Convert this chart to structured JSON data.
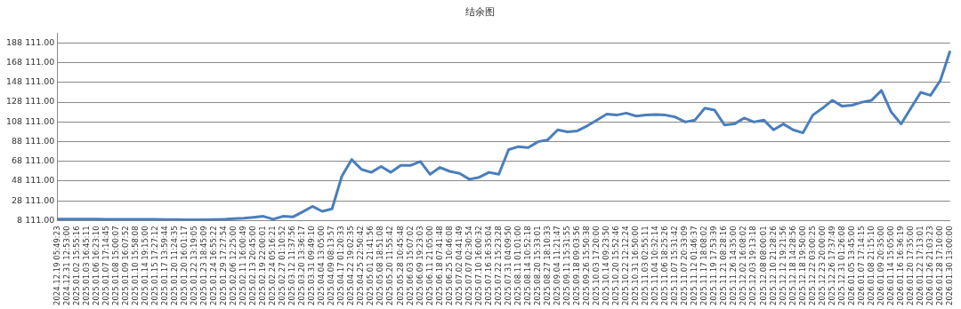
{
  "chart_data": {
    "type": "line",
    "title": "结余图",
    "categories": [
      "2024.12.19 05:49:23",
      "2024.12.31 12:53:00",
      "2025.01.02 15:55:16",
      "2025.01.03 16:45:11",
      "2025.01.06 16:23:10",
      "2025.01.07 17:14:45",
      "2025.01.08 15:00:07",
      "2025.01.09 16:07:52",
      "2025.01.10 15:58:08",
      "2025.01.14 19:15:00",
      "2025.01.15 17:27:12",
      "2025.01.17 13:59:44",
      "2025.01.20 11:24:35",
      "2025.01.20 16:01:17",
      "2025.01.22 13:19:05",
      "2025.01.23 18:45:09",
      "2025.01.24 16:55:22",
      "2025.01.29 17:27:54",
      "2025.02.06 12:25:00",
      "2025.02.11 16:00:49",
      "2025.02.13 20:45:00",
      "2025.02.19 22:00:01",
      "2025.02.24 05:16:21",
      "2025.02.27 01:10:52",
      "2025.03.12 11:37:56",
      "2025.03.20 13:36:17",
      "2025.03.31 09:49:10",
      "2025.04.04 13:05:00",
      "2025.04.09 08:13:57",
      "2025.04.17 01:20:33",
      "2025.04.22 19:02:35",
      "2025.04.25 22:50:42",
      "2025.05.01 21:41:56",
      "2025.05.08 18:51:08",
      "2025.05.20 11:55:42",
      "2025.05.28 10:45:48",
      "2025.06.03 15:07:02",
      "2025.06.09 19:23:03",
      "2025.06.11 21:05:00",
      "2025.06.18 07:41:48",
      "2025.06.25 10:46:08",
      "2025.07.02 04:41:49",
      "2025.07.07 02:30:54",
      "2025.07.10 16:00:32",
      "2025.07.16 16:35:04",
      "2025.07.22 15:23:28",
      "2025.07.31 04:09:50",
      "2025.08.11 01:01:00",
      "2025.08.14 10:52:18",
      "2025.08.20 15:33:01",
      "2025.08.27 18:10:33",
      "2025.09.04 11:21:47",
      "2025.09.11 15:31:55",
      "2025.09.18 09:03:56",
      "2025.09.26 15:50:38",
      "2025.10.03 17:20:00",
      "2025.10.14 09:23:50",
      "2025.10.20 15:52:46",
      "2025.10.22 12:12:24",
      "2025.10.31 16:50:00",
      "2025.11.03 02:55:11",
      "2025.11.04 10:32:14",
      "2025.11.06 18:25:26",
      "2025.11.07 15:31:42",
      "2025.11.07 20:33:09",
      "2025.11.12 01:46:37",
      "2025.11.17 18:08:02",
      "2025.11.19 17:53:39",
      "2025.11.21 08:28:16",
      "2025.11.26 14:35:00",
      "2025.12.02 16:08:02",
      "2025.12.03 19:13:18",
      "2025.12.08 08:00:01",
      "2025.12.10 21:28:26",
      "2025.12.12 19:21:56",
      "2025.12.18 14:28:56",
      "2025.12.18 19:50:00",
      "2025.12.22 03:00:25",
      "2025.12.23 20:00:00",
      "2025.12.26 17:37:49",
      "2025.12.31 01:26:08",
      "2026.01.05 13:45:00",
      "2026.01.07 17:14:15",
      "2026.01.08 21:15:10",
      "2026.01.09 20:35:00",
      "2026.01.14 15:05:00",
      "2026.01.16 16:36:19",
      "2026.01.20 17:35:00",
      "2026.01.22 17:13:01",
      "2026.01.26 21:03:23",
      "2026.01.28 17:10:00",
      "2026.01.30 13:00:00"
    ],
    "series": [
      {
        "color": "#4a7ebb",
        "values": [
          9700,
          9700,
          9600,
          9600,
          9600,
          9500,
          9500,
          9500,
          9400,
          9400,
          9400,
          9300,
          9200,
          9000,
          9000,
          9000,
          9200,
          9500,
          10000,
          10600,
          11500,
          12500,
          9500,
          12500,
          11800,
          17000,
          22500,
          17500,
          20000,
          53000,
          70000,
          60000,
          57000,
          63000,
          57000,
          64000,
          64000,
          68000,
          55000,
          62000,
          58000,
          56000,
          50000,
          52000,
          57000,
          55000,
          80000,
          83000,
          82000,
          88000,
          90000,
          100000,
          98000,
          99000,
          104000,
          110000,
          116000,
          115000,
          117000,
          114000,
          115000,
          115500,
          115000,
          113000,
          108000,
          110000,
          122000,
          120000,
          105000,
          106000,
          112000,
          108000,
          110000,
          100000,
          106000,
          100000,
          97000,
          115000,
          122000,
          130000,
          124000,
          125000,
          128000,
          130000,
          140000,
          118000,
          106000,
          122000,
          138000,
          135000,
          150000,
          180000
        ]
      }
    ],
    "ylim": [
      8111,
      198111
    ],
    "yticks": [
      {
        "value": 8111,
        "label": "8 111.00"
      },
      {
        "value": 28111,
        "label": "28 111.00"
      },
      {
        "value": 48111,
        "label": "48 111.00"
      },
      {
        "value": 68111,
        "label": "68 111.00"
      },
      {
        "value": 88111,
        "label": "88 111.00"
      },
      {
        "value": 108111,
        "label": "108 111.00"
      },
      {
        "value": 128111,
        "label": "128 111.00"
      },
      {
        "value": 148111,
        "label": "148 111.00"
      },
      {
        "value": 168111,
        "label": "168 111.00"
      },
      {
        "value": 188111,
        "label": "188 111.00"
      }
    ],
    "grid": "y",
    "legend": false,
    "marker": "none",
    "line_style": "solid"
  }
}
